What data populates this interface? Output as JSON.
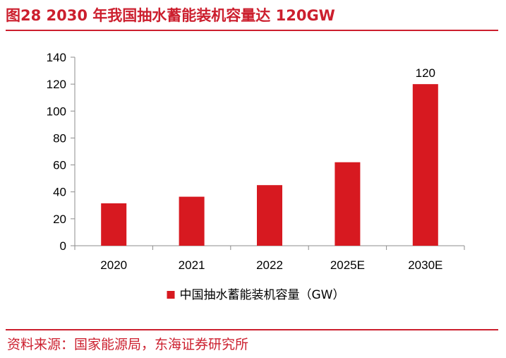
{
  "figure": {
    "title": "图28  2030 年我国抽水蓄能装机容量达 120GW",
    "source": "资料来源：国家能源局，东海证券研究所",
    "accent_color": "#cc1f2e"
  },
  "chart_data": {
    "type": "bar",
    "title": "",
    "xlabel": "",
    "ylabel": "",
    "categories": [
      "2020",
      "2021",
      "2022",
      "2025E",
      "2030E"
    ],
    "series": [
      {
        "name": "中国抽水蓄能装机容量（GW）",
        "values": [
          31.5,
          36.4,
          45,
          62,
          120
        ],
        "color": "#d71920"
      }
    ],
    "data_labels": [
      {
        "category": "2030E",
        "text": "120"
      }
    ],
    "ylim": [
      0,
      140
    ],
    "yticks": [
      "0",
      "20",
      "40",
      "60",
      "80",
      "100",
      "120",
      "140"
    ],
    "grid": false,
    "legend_position": "bottom-center"
  }
}
